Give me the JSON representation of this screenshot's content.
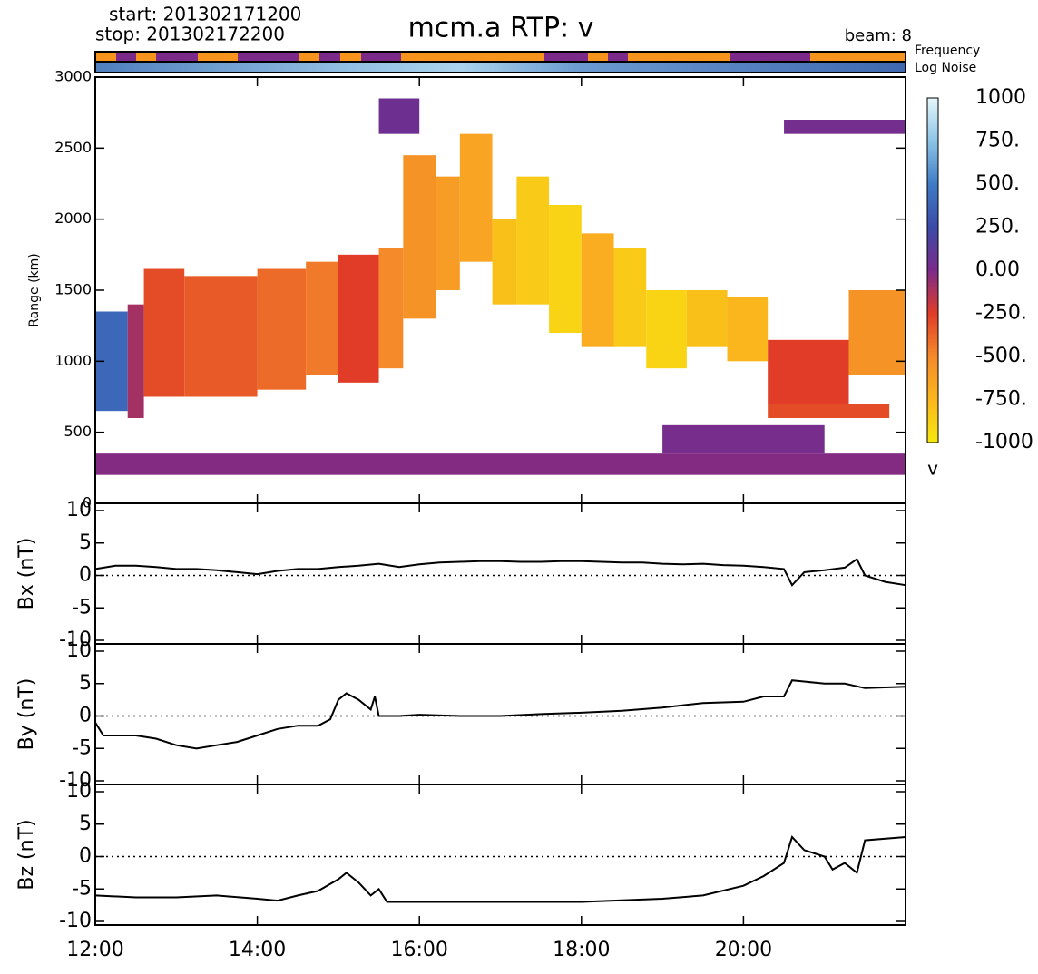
{
  "chart_data": [
    {
      "type": "heatmap",
      "title": "mcm.a RTP: v",
      "start": "start: 201302171200",
      "stop": "stop: 201302172200",
      "beam": "beam: 8",
      "frequency_label": "Frequency",
      "noise_label": "Log Noise",
      "ylabel": "Range (km)",
      "colorbar_label": "v",
      "xlim": [
        12,
        22
      ],
      "ylim": [
        0,
        3000
      ],
      "yticks": [
        0,
        500,
        1000,
        1500,
        2000,
        2500,
        3000
      ],
      "clim": [
        -1000,
        1000
      ],
      "colorscale": [
        "#f6e80f",
        "#fbb61d",
        "#f58a2a",
        "#e03c28",
        "#7b2a8a",
        "#3b4aa8",
        "#3f7cc6",
        "#8cc4e6",
        "#e6f7fb"
      ],
      "cticks": [
        {
          "value": 1000,
          "label": "1000"
        },
        {
          "value": 750,
          "label": "750."
        },
        {
          "value": 500,
          "label": "500."
        },
        {
          "value": 250,
          "label": "250."
        },
        {
          "value": 0,
          "label": "0.00"
        },
        {
          "value": -250,
          "label": "-250."
        },
        {
          "value": -500,
          "label": "-500."
        },
        {
          "value": -750,
          "label": "-750."
        },
        {
          "value": -1000,
          "label": "-1000"
        }
      ],
      "cells": [
        {
          "x": [
            12.0,
            12.4
          ],
          "y": [
            650,
            1350
          ],
          "value": 400
        },
        {
          "x": [
            12.4,
            12.6
          ],
          "y": [
            600,
            1400
          ],
          "value": -100
        },
        {
          "x": [
            12.6,
            13.1
          ],
          "y": [
            750,
            1650
          ],
          "value": -300
        },
        {
          "x": [
            13.1,
            14.0
          ],
          "y": [
            750,
            1600
          ],
          "value": -350
        },
        {
          "x": [
            14.0,
            14.6
          ],
          "y": [
            800,
            1650
          ],
          "value": -400
        },
        {
          "x": [
            14.6,
            15.0
          ],
          "y": [
            900,
            1700
          ],
          "value": -450
        },
        {
          "x": [
            15.0,
            15.5
          ],
          "y": [
            850,
            1750
          ],
          "value": -250
        },
        {
          "x": [
            15.5,
            15.8
          ],
          "y": [
            950,
            1800
          ],
          "value": -500
        },
        {
          "x": [
            15.8,
            16.2
          ],
          "y": [
            1300,
            2450
          ],
          "value": -550
        },
        {
          "x": [
            16.2,
            16.5
          ],
          "y": [
            1500,
            2300
          ],
          "value": -600
        },
        {
          "x": [
            16.5,
            16.9
          ],
          "y": [
            1700,
            2600
          ],
          "value": -650
        },
        {
          "x": [
            16.9,
            17.2
          ],
          "y": [
            1400,
            2000
          ],
          "value": -800
        },
        {
          "x": [
            17.2,
            17.6
          ],
          "y": [
            1400,
            2300
          ],
          "value": -850
        },
        {
          "x": [
            17.6,
            18.0
          ],
          "y": [
            1200,
            2100
          ],
          "value": -900
        },
        {
          "x": [
            18.0,
            18.4
          ],
          "y": [
            1100,
            1900
          ],
          "value": -700
        },
        {
          "x": [
            18.4,
            18.8
          ],
          "y": [
            1100,
            1800
          ],
          "value": -850
        },
        {
          "x": [
            18.8,
            19.3
          ],
          "y": [
            950,
            1500
          ],
          "value": -900
        },
        {
          "x": [
            19.3,
            19.8
          ],
          "y": [
            1100,
            1500
          ],
          "value": -800
        },
        {
          "x": [
            19.8,
            20.3
          ],
          "y": [
            1000,
            1450
          ],
          "value": -750
        },
        {
          "x": [
            20.3,
            21.3
          ],
          "y": [
            700,
            1150
          ],
          "value": -250
        },
        {
          "x": [
            20.3,
            21.8
          ],
          "y": [
            600,
            700
          ],
          "value": -300
        },
        {
          "x": [
            21.3,
            22.0
          ],
          "y": [
            900,
            1500
          ],
          "value": -550
        },
        {
          "x": [
            12.0,
            22.0
          ],
          "y": [
            200,
            350
          ],
          "value": -20
        },
        {
          "x": [
            19.0,
            21.0
          ],
          "y": [
            350,
            550
          ],
          "value": 20
        },
        {
          "x": [
            15.5,
            16.0
          ],
          "y": [
            2600,
            2850
          ],
          "value": 50
        },
        {
          "x": [
            20.5,
            22.0
          ],
          "y": [
            2600,
            2700
          ],
          "value": 30
        }
      ]
    },
    {
      "type": "line",
      "ylabel": "Bx (nT)",
      "xlim": [
        12,
        22
      ],
      "ylim": [
        -10,
        10
      ],
      "yticks": [
        -10,
        -5,
        0,
        5,
        10
      ],
      "color": "#000000",
      "x": [
        12.0,
        12.25,
        12.5,
        12.75,
        13.0,
        13.25,
        13.5,
        13.75,
        14.0,
        14.25,
        14.5,
        14.75,
        15.0,
        15.25,
        15.5,
        15.75,
        16.0,
        16.25,
        16.5,
        16.75,
        17.0,
        17.25,
        17.5,
        17.75,
        18.0,
        18.25,
        18.5,
        18.75,
        19.0,
        19.25,
        19.5,
        19.75,
        20.0,
        20.25,
        20.5,
        20.6,
        20.75,
        21.0,
        21.25,
        21.4,
        21.5,
        21.75,
        22.0
      ],
      "values": [
        1,
        1.5,
        1.5,
        1.3,
        1,
        1,
        0.8,
        0.5,
        0.2,
        0.7,
        1,
        1,
        1.3,
        1.5,
        1.8,
        1.3,
        1.7,
        2,
        2.1,
        2.2,
        2.2,
        2.1,
        2.1,
        2.2,
        2.2,
        2.1,
        2,
        2,
        1.8,
        1.7,
        1.8,
        1.6,
        1.5,
        1.3,
        1,
        -1.5,
        0.5,
        0.8,
        1.2,
        2.5,
        0,
        -1,
        -1.5
      ]
    },
    {
      "type": "line",
      "ylabel": "By (nT)",
      "xlim": [
        12,
        22
      ],
      "ylim": [
        -10,
        10
      ],
      "yticks": [
        -10,
        -5,
        0,
        5,
        10
      ],
      "color": "#000000",
      "x": [
        12.0,
        12.1,
        12.5,
        12.75,
        13.0,
        13.25,
        13.5,
        13.75,
        14.0,
        14.25,
        14.5,
        14.75,
        14.9,
        15.0,
        15.1,
        15.25,
        15.4,
        15.45,
        15.5,
        15.75,
        16.0,
        16.5,
        17.0,
        17.5,
        18.0,
        18.5,
        19.0,
        19.5,
        20.0,
        20.25,
        20.5,
        20.6,
        21.0,
        21.25,
        21.5,
        22.0
      ],
      "values": [
        -1,
        -3,
        -3,
        -3.5,
        -4.5,
        -5,
        -4.5,
        -4,
        -3,
        -2,
        -1.5,
        -1.5,
        -0.5,
        2.5,
        3.5,
        2.5,
        1,
        3,
        0,
        0,
        0.2,
        0,
        0,
        0.3,
        0.5,
        0.8,
        1.3,
        2,
        2.2,
        3,
        3,
        5.5,
        5,
        5,
        4.3,
        4.5
      ]
    },
    {
      "type": "line",
      "ylabel": "Bz (nT)",
      "xlim": [
        12,
        22
      ],
      "ylim": [
        -10,
        10
      ],
      "yticks": [
        -10,
        -5,
        0,
        5,
        10
      ],
      "color": "#000000",
      "xticks": [
        {
          "value": 12,
          "label": "12:00"
        },
        {
          "value": 14,
          "label": "14:00"
        },
        {
          "value": 16,
          "label": "16:00"
        },
        {
          "value": 18,
          "label": "18:00"
        },
        {
          "value": 20,
          "label": "20:00"
        }
      ],
      "x": [
        12.0,
        12.5,
        13.0,
        13.5,
        14.0,
        14.25,
        14.5,
        14.75,
        15.0,
        15.1,
        15.25,
        15.4,
        15.5,
        15.6,
        16.0,
        17.0,
        18.0,
        19.0,
        19.5,
        20.0,
        20.25,
        20.5,
        20.6,
        20.75,
        21.0,
        21.1,
        21.25,
        21.4,
        21.5,
        22.0
      ],
      "values": [
        -6,
        -6.3,
        -6.3,
        -6,
        -6.5,
        -6.8,
        -6,
        -5.3,
        -3.5,
        -2.5,
        -4,
        -6,
        -5,
        -7,
        -7,
        -7,
        -7,
        -6.5,
        -6,
        -4.5,
        -3,
        -1,
        3,
        1,
        0,
        -2,
        -1,
        -2.5,
        2.5,
        3
      ]
    }
  ]
}
